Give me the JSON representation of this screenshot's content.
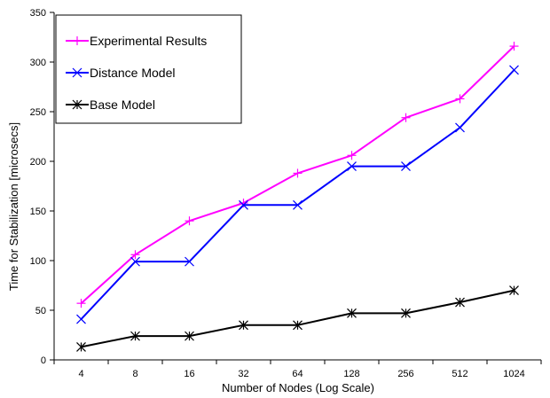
{
  "chart_data": {
    "type": "line",
    "title": "",
    "xlabel": "Number of Nodes (Log Scale)",
    "ylabel": "Time for Stabilization [microsecs]",
    "categories": [
      "4",
      "8",
      "16",
      "32",
      "64",
      "128",
      "256",
      "512",
      "1024"
    ],
    "ylim": [
      0,
      350
    ],
    "yticks": [
      0,
      50,
      100,
      150,
      200,
      250,
      300,
      350
    ],
    "grid": false,
    "legend_position": "top-left",
    "series": [
      {
        "name": "Experimental Results",
        "color": "#ff00ff",
        "marker": "plus",
        "values": [
          57,
          106,
          140,
          158,
          188,
          206,
          244,
          263,
          316
        ]
      },
      {
        "name": "Distance Model",
        "color": "#0000ff",
        "marker": "x",
        "values": [
          41,
          99,
          99,
          156,
          156,
          195,
          195,
          234,
          292
        ]
      },
      {
        "name": "Base Model",
        "color": "#000000",
        "marker": "asterisk",
        "values": [
          13,
          24,
          24,
          35,
          35,
          47,
          47,
          58,
          70
        ]
      }
    ]
  }
}
